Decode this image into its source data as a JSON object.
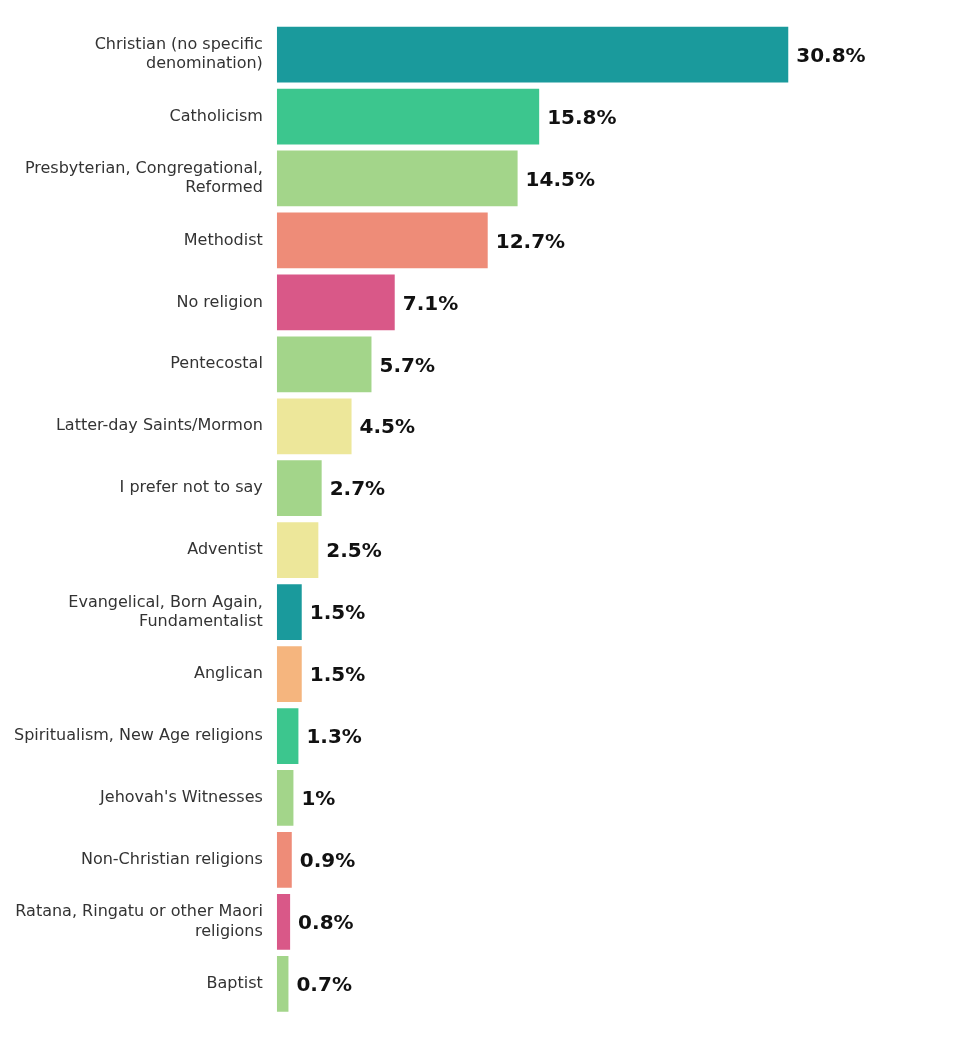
{
  "chart_data": {
    "type": "bar",
    "orientation": "horizontal",
    "categories": [
      "Christian (no specific denomination)",
      "Catholicism",
      "Presbyterian, Congregational, Reformed",
      "Methodist",
      "No religion",
      "Pentecostal",
      "Latter-day Saints/Mormon",
      "I prefer not to say",
      "Adventist",
      "Evangelical, Born Again, Fundamentalist",
      "Anglican",
      "Spiritualism, New Age religions",
      "Jehovah's Witnesses",
      "Non-Christian religions",
      "Ratana, Ringatu or other Maori religions",
      "Baptist"
    ],
    "values": [
      30.8,
      15.8,
      14.5,
      12.7,
      7.1,
      5.7,
      4.5,
      2.7,
      2.5,
      1.5,
      1.5,
      1.3,
      1,
      0.9,
      0.8,
      0.7
    ],
    "colors": [
      "#1a9a9c",
      "#3cc68e",
      "#a3d58a",
      "#ee8c78",
      "#d95888",
      "#a3d58a",
      "#ede79a",
      "#a3d58a",
      "#ede79a",
      "#1a9a9c",
      "#f5b57e",
      "#3cc68e",
      "#a3d58a",
      "#ee8c78",
      "#d95888",
      "#a3d58a"
    ],
    "value_labels": [
      "30.8%",
      "15.8%",
      "14.5%",
      "12.7%",
      "7.1%",
      "5.7%",
      "4.5%",
      "2.7%",
      "2.5%",
      "1.5%",
      "1.5%",
      "1.3%",
      "1%",
      "0.9%",
      "0.8%",
      "0.7%"
    ],
    "grid": false,
    "legend": false
  }
}
